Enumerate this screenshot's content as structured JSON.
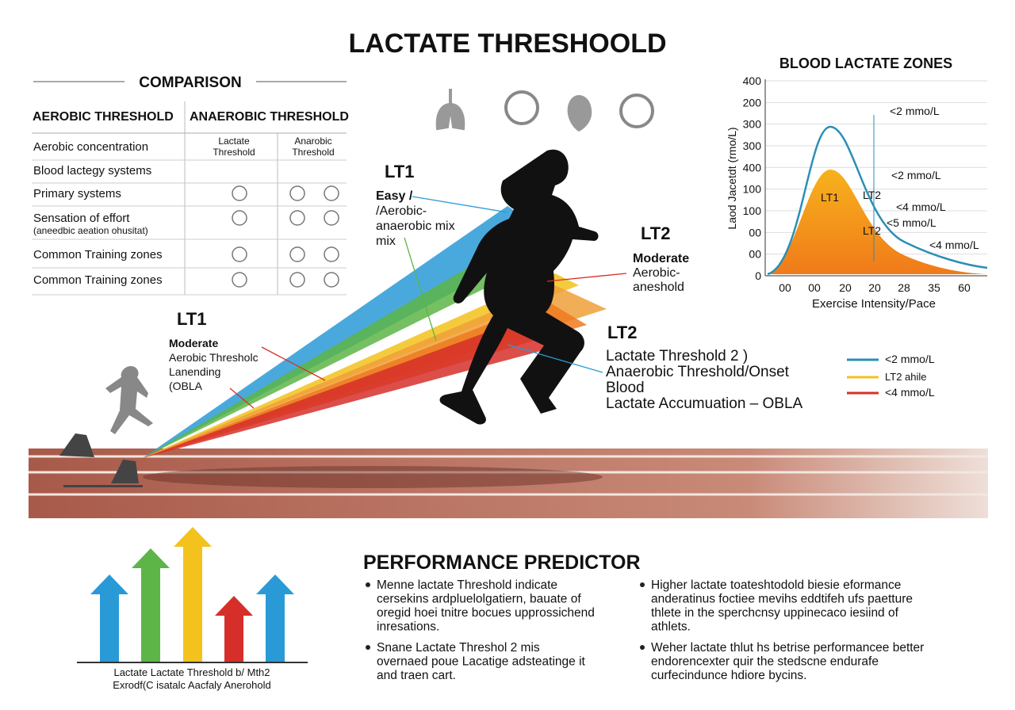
{
  "title": "LACTATE THRESHOOLD",
  "comparison": {
    "heading": "COMPARISON",
    "columns": [
      "AEROBIC THRESHOLD",
      "ANAEROBIC THRESHOLD"
    ],
    "subcolumns": [
      [
        "Lactate",
        "Threshold"
      ],
      [
        "Anarobic",
        "Threshold"
      ]
    ],
    "rows": [
      [
        "Aerobic concentration"
      ],
      [
        "Blood lactegy systems"
      ],
      [
        "Primary systems"
      ],
      [
        "Sensation of effort",
        "(aneedbic aeation ohusitat)"
      ],
      [
        "Common Training zones"
      ],
      [
        "Common Training zones"
      ]
    ]
  },
  "callouts": [
    {
      "tag": "LT1",
      "lines": [
        "Easy /",
        "/Aerobic-",
        "anaerobic mix",
        "mix"
      ]
    },
    {
      "tag": "LT2",
      "lines": [
        "Moderate",
        "Aerobic-",
        "aneshold"
      ]
    },
    {
      "tag": "LT1",
      "lines": [
        "Moderate",
        "Aerobic Thresholc",
        "Lanending",
        "(OBLA"
      ]
    },
    {
      "tag": "LT2",
      "lines": [
        "Lactate Threshold 2 )",
        "Anaerobic Threshold/Onset",
        "Blood",
        "Lactate Accumuation – OBLA"
      ]
    }
  ],
  "zones": {
    "title": "BLOOD LACTATE ZONES",
    "y_label": "Laod Jacetdt (rmo/L)",
    "x_label": "Exercise Intensity/Pace",
    "y_labels": [
      "400",
      "200",
      "300",
      "300",
      "400",
      "100",
      "100",
      "00",
      "00",
      "0"
    ],
    "x_labels": [
      "00",
      "00",
      "20",
      "20",
      "28",
      "35",
      "60"
    ],
    "notes": [
      "<2 mmo/L",
      "<2 mmo/L",
      "LT1",
      "LT2",
      "<4 mmo/L",
      "<5 mmo/L",
      "LT2",
      "<4 mmo/L"
    ]
  },
  "legend": [
    "<2 mmo/L",
    "LT2 ahile",
    "<4 mmo/L"
  ],
  "caption": [
    "Lactate Lactate Threshold b/ Mth2",
    "Exrodf(C isatalc Aacfaly Anerohold"
  ],
  "predictor": {
    "heading": "PERFORMANCE PREDICTOR",
    "bullets": [
      [
        "Menne lactate Threshold indicate",
        "cersekins ardpluelolgatiern, bauate of",
        "oregid hoei tnitre bocues upprossichend",
        "inresations."
      ],
      [
        "Snane Lactate Threshol 2 mis",
        "overnaed poue Lacatige adsteatinge it",
        "and traen cart."
      ],
      [
        "Higher lactate toateshtodold biesie eformance",
        "anderatinus foctiee mevihs eddtifeh ufs paetture",
        "thlete in the sperchcnsy uppinecaco iesiind of",
        "athlets."
      ],
      [
        "Weher lactate thlut hs betrise performancee better",
        "endorencexter quir the stedscne endurafe",
        "curfecindunce hdiore bycins."
      ]
    ]
  }
}
